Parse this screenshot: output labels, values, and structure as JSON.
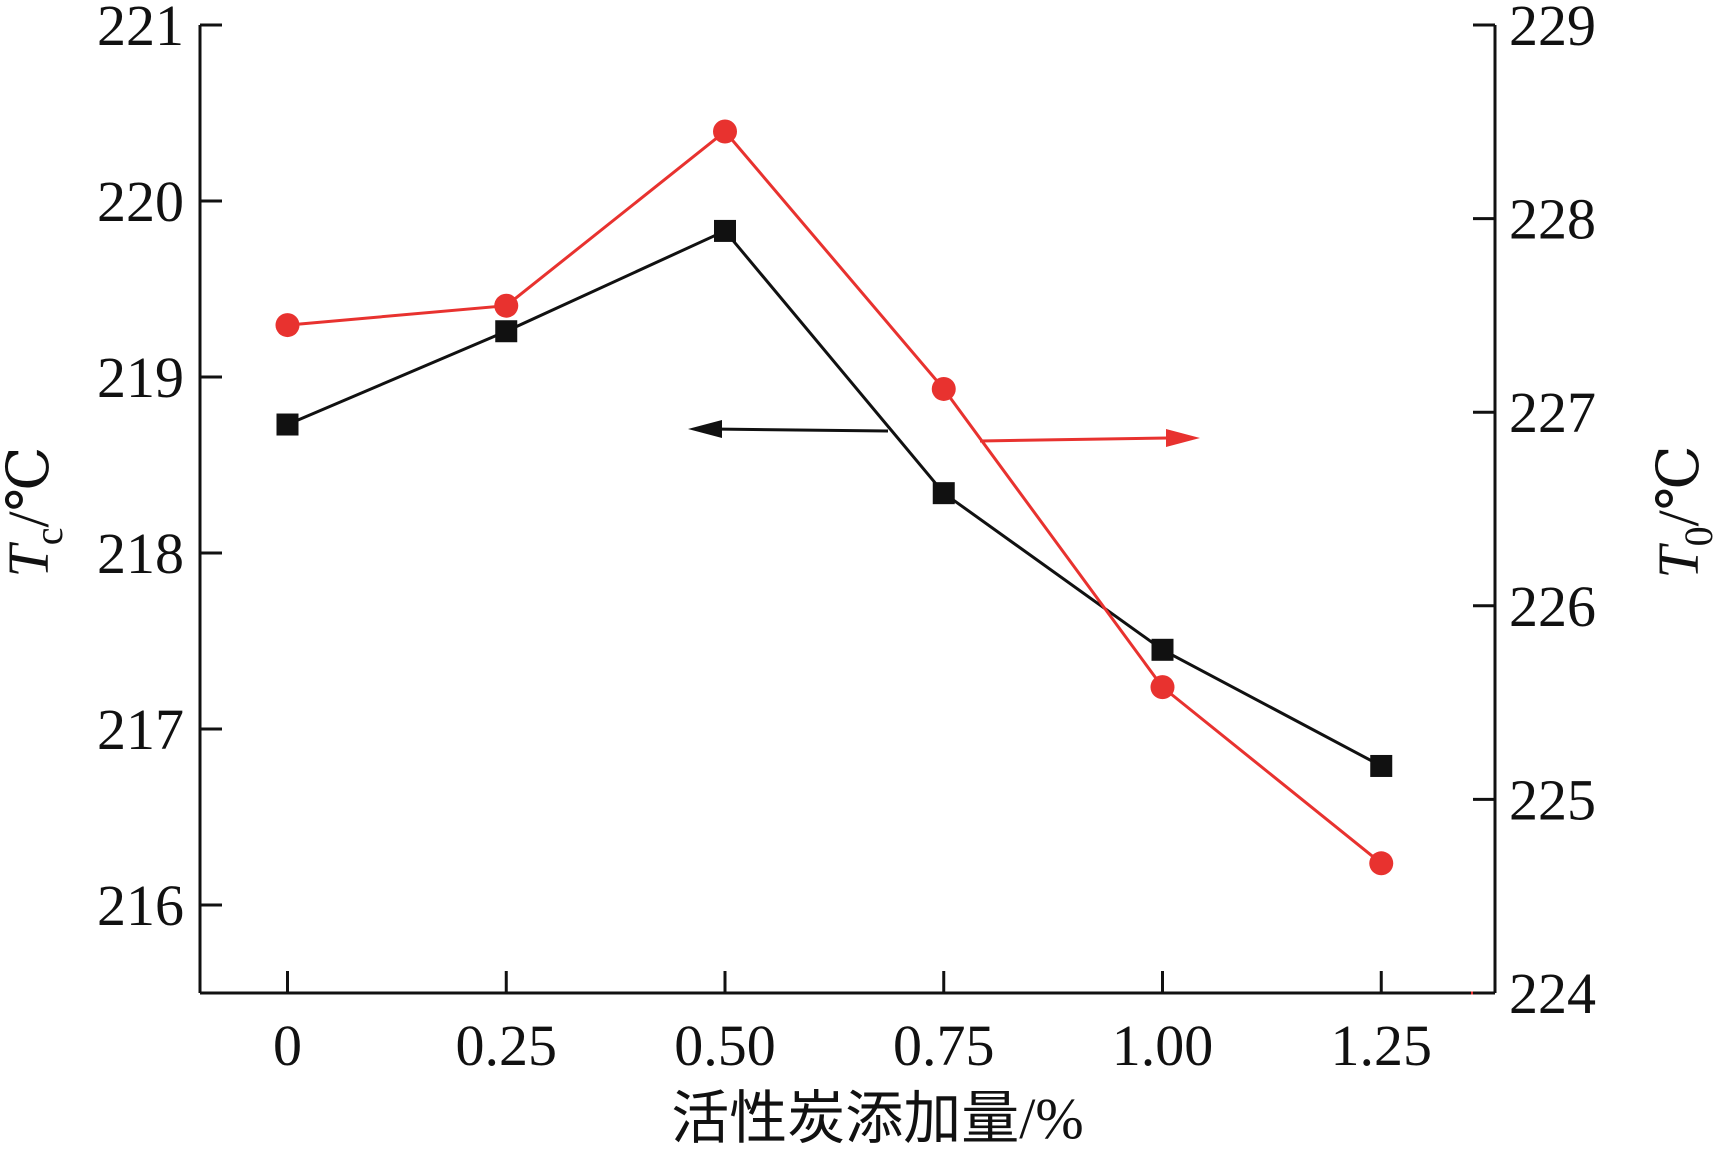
{
  "chart_data": {
    "type": "line",
    "x": [
      0,
      0.25,
      0.5,
      0.75,
      1.0,
      1.25
    ],
    "xticks": [
      {
        "value": 0,
        "label": "0"
      },
      {
        "value": 0.25,
        "label": "0.25"
      },
      {
        "value": 0.5,
        "label": "0.50"
      },
      {
        "value": 0.75,
        "label": "0.75"
      },
      {
        "value": 1.0,
        "label": "1.00"
      },
      {
        "value": 1.25,
        "label": "1.25"
      }
    ],
    "xlim": [
      -0.1,
      1.38
    ],
    "xlabel": "活性炭添加量/%",
    "y_left": {
      "label_main": "T",
      "label_sub": "c",
      "label_unit": "/℃",
      "lim": [
        215.5,
        221
      ],
      "ticks": [
        "216",
        "217",
        "218",
        "219",
        "220",
        "221"
      ]
    },
    "y_right": {
      "label_main": "T",
      "label_sub": "0",
      "label_unit": "/℃",
      "lim": [
        224,
        229
      ],
      "ticks": [
        "224",
        "225",
        "226",
        "227",
        "228",
        "229"
      ]
    },
    "series": [
      {
        "axis": "left",
        "marker": "square",
        "color": "#111111",
        "values": [
          218.73,
          219.26,
          219.83,
          218.34,
          217.45,
          216.79
        ]
      },
      {
        "axis": "right",
        "marker": "circle",
        "color": "#e8322f",
        "values": [
          227.45,
          227.55,
          228.45,
          227.12,
          225.58,
          224.67
        ]
      }
    ],
    "annotations": [
      {
        "type": "arrow",
        "direction": "left",
        "color": "#111111",
        "points_to": "left axis"
      },
      {
        "type": "arrow",
        "direction": "right",
        "color": "#e8322f",
        "points_to": "right axis"
      }
    ],
    "grid": false,
    "legend": "none"
  }
}
